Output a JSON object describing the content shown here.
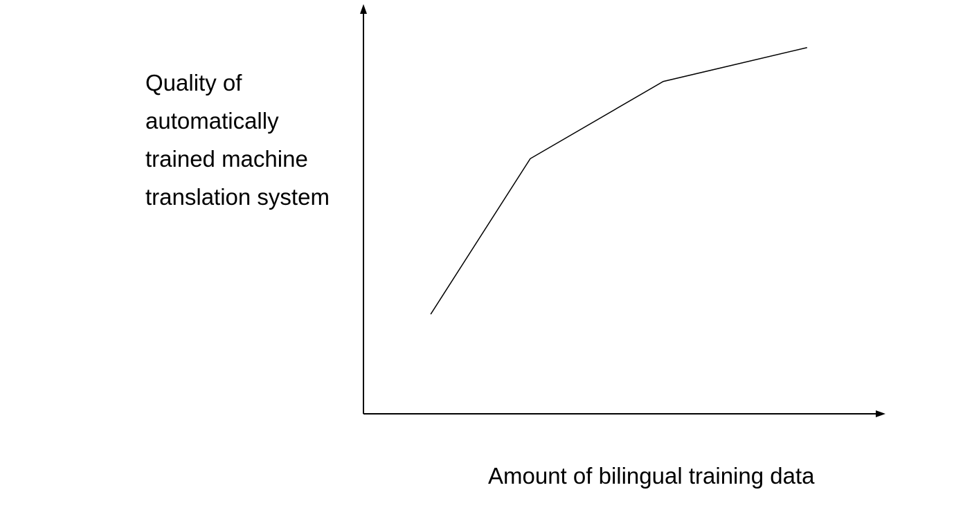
{
  "chart_data": {
    "type": "line",
    "y_label": "Quality of automatically trained machine translation system",
    "x_label": "Amount of bilingual training data",
    "x": [
      12.9,
      32.0,
      57.5,
      85.1
    ],
    "values": [
      24.4,
      62.5,
      81.4,
      89.7
    ],
    "color": "#000000",
    "xlim": [
      0,
      100
    ],
    "ylim": [
      0,
      100
    ]
  }
}
